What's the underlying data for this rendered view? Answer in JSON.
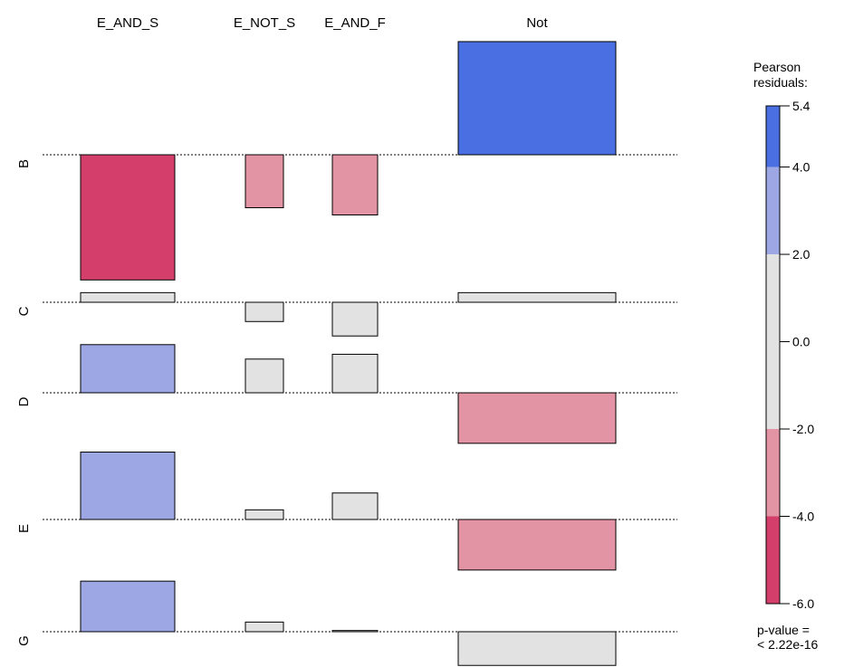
{
  "chart_data": {
    "type": "association",
    "columns": [
      "E_AND_S",
      "E_NOT_S",
      "E_AND_F",
      "Not"
    ],
    "rows": [
      "B",
      "C",
      "D",
      "E",
      "G"
    ],
    "residuals": [
      [
        -5.2,
        -2.2,
        -2.5,
        4.7
      ],
      [
        0.4,
        -0.8,
        -1.4,
        0.4
      ],
      [
        2.0,
        1.4,
        1.6,
        -2.1
      ],
      [
        2.8,
        0.4,
        1.1,
        -2.1
      ],
      [
        2.1,
        0.4,
        0.05,
        -1.4
      ]
    ],
    "legend": {
      "title_lines": [
        "Pearson",
        "residuals:"
      ],
      "ticks": [
        "5.4",
        "4.0",
        "2.0",
        "0.0",
        "-2.0",
        "-4.0",
        "-6.0"
      ],
      "range": [
        -6.0,
        5.4
      ],
      "bands": [
        {
          "from": 4.0,
          "to": 5.4,
          "color": "#4a6fe3"
        },
        {
          "from": 2.0,
          "to": 4.0,
          "color": "#9da7e3"
        },
        {
          "from": -2.0,
          "to": 2.0,
          "color": "#e2e2e2"
        },
        {
          "from": -4.0,
          "to": -2.0,
          "color": "#e294a5"
        },
        {
          "from": -6.0,
          "to": -4.0,
          "color": "#d33f6a"
        }
      ],
      "p_value_lines": [
        "p-value =",
        "< 2.22e-16"
      ]
    }
  }
}
